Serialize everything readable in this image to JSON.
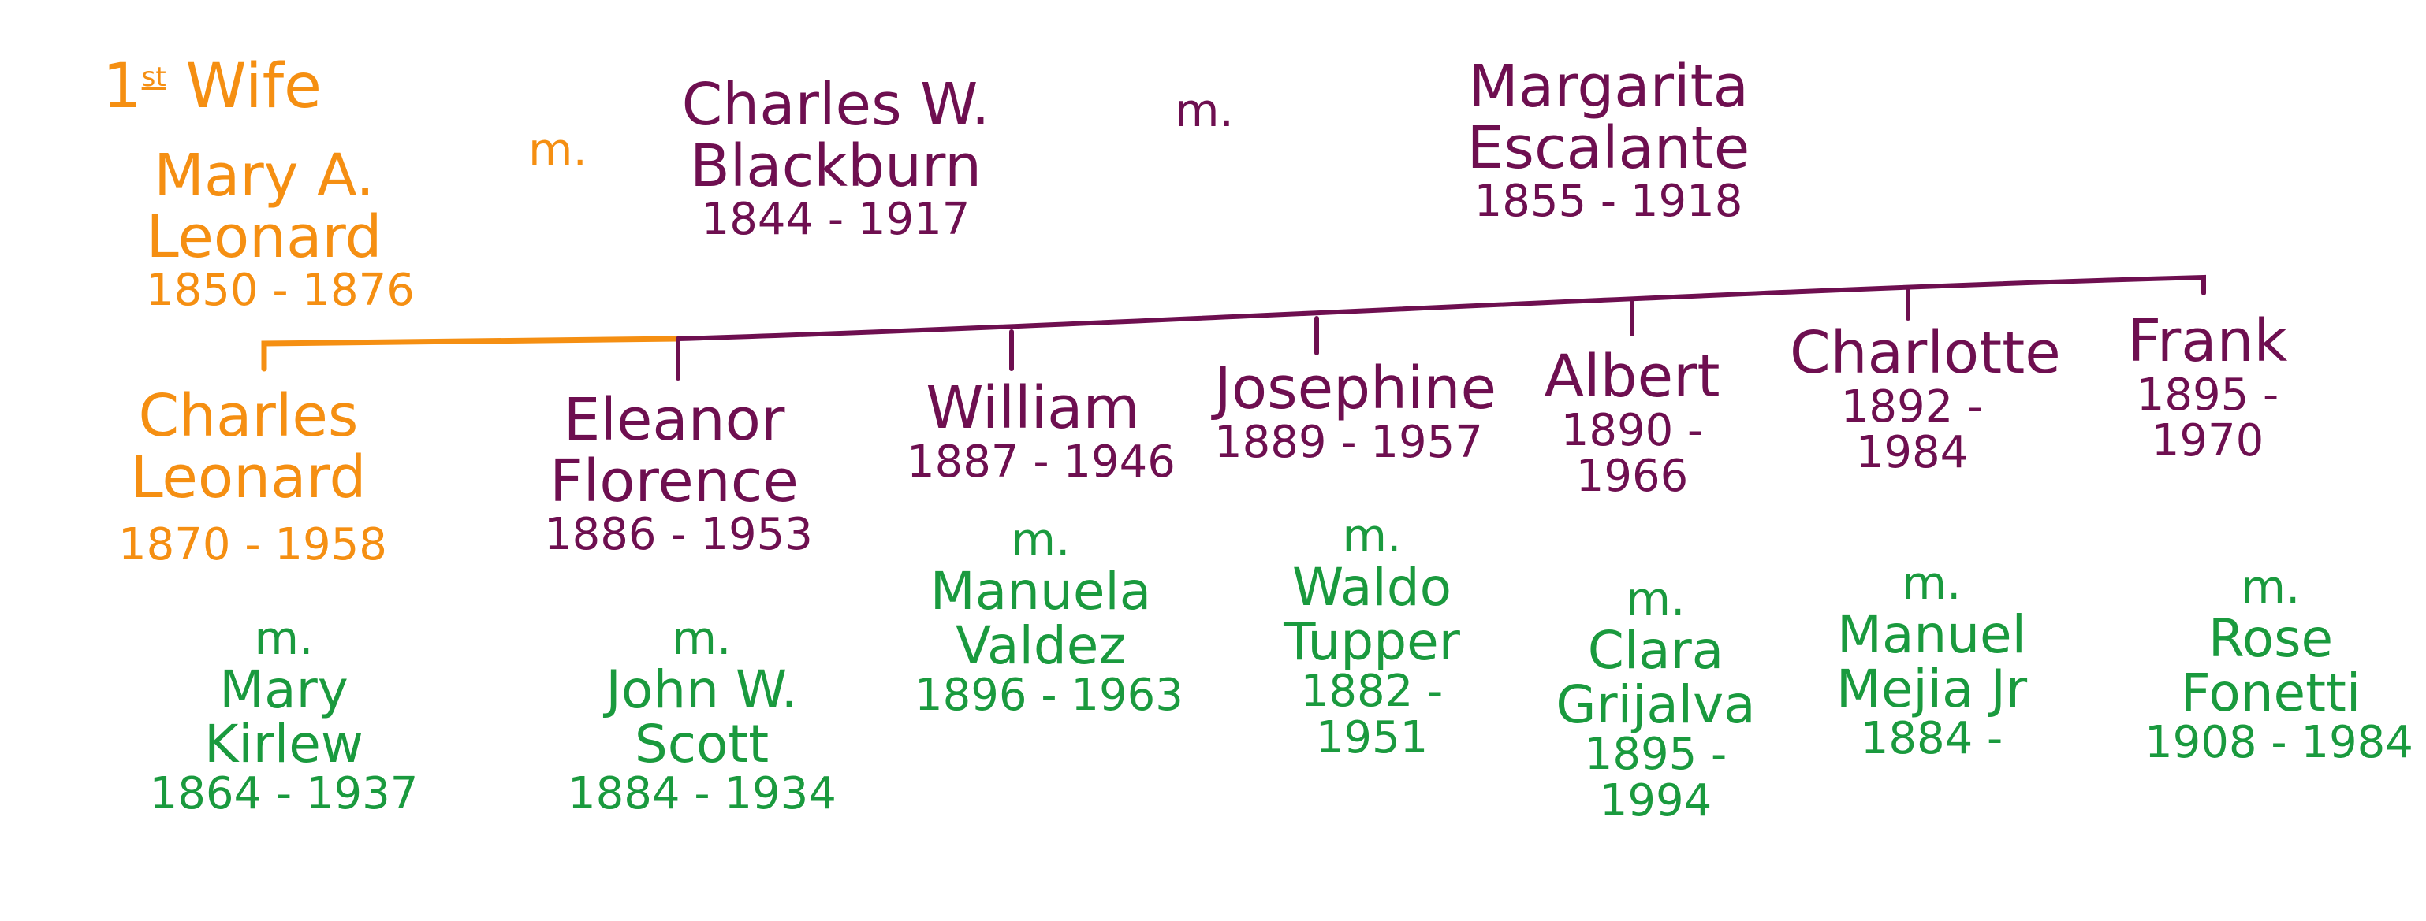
{
  "colors": {
    "first_wife": "#f58f12",
    "main_line": "#6e0f50",
    "spouses": "#1a9a3e"
  },
  "first_wife": {
    "label_ordinal": "1",
    "label_ordinal_suffix": "st",
    "label_word": "Wife",
    "name_line1": "Mary A.",
    "name_line2": "Leonard",
    "dates": "1850 - 1876",
    "marriage": "m."
  },
  "patriarch": {
    "name_line1": "Charles W.",
    "name_line2": "Blackburn",
    "dates": "1844 - 1917"
  },
  "second_marriage": "m.",
  "second_wife": {
    "name_line1": "Margarita",
    "name_line2": "Escalante",
    "dates": "1855 - 1918"
  },
  "children": [
    {
      "name_lines": [
        "Charles",
        "Leonard"
      ],
      "dates_lines": [
        "1870 - 1958"
      ],
      "marriage": "m.",
      "spouse_name_lines": [
        "Mary",
        "Kirlew"
      ],
      "spouse_dates_lines": [
        "1864 - 1937"
      ]
    },
    {
      "name_lines": [
        "Eleanor",
        "Florence"
      ],
      "dates_lines": [
        "1886 - 1953"
      ],
      "marriage": "m.",
      "spouse_name_lines": [
        "John W.",
        "Scott"
      ],
      "spouse_dates_lines": [
        "1884 - 1934"
      ]
    },
    {
      "name_lines": [
        "William"
      ],
      "dates_lines": [
        "1887 - 1946"
      ],
      "marriage": "m.",
      "spouse_name_lines": [
        "Manuela",
        "Valdez"
      ],
      "spouse_dates_lines": [
        "1896 - 1963"
      ]
    },
    {
      "name_lines": [
        "Josephine"
      ],
      "dates_lines": [
        "1889 - 1957"
      ],
      "marriage": "m.",
      "spouse_name_lines": [
        "Waldo",
        "Tupper"
      ],
      "spouse_dates_lines": [
        "1882 -",
        "1951"
      ]
    },
    {
      "name_lines": [
        "Albert"
      ],
      "dates_lines": [
        "1890 -",
        "1966"
      ],
      "marriage": "m.",
      "spouse_name_lines": [
        "Clara",
        "Grijalva"
      ],
      "spouse_dates_lines": [
        "1895 -",
        "1994"
      ]
    },
    {
      "name_lines": [
        "Charlotte"
      ],
      "dates_lines": [
        "1892 -",
        "1984"
      ],
      "marriage": "m.",
      "spouse_name_lines": [
        "Manuel",
        "Mejia Jr"
      ],
      "spouse_dates_lines": [
        "1884 -"
      ]
    },
    {
      "name_lines": [
        "Frank"
      ],
      "dates_lines": [
        "1895 -",
        "1970"
      ],
      "marriage": "m.",
      "spouse_name_lines": [
        "Rose",
        "Fonetti"
      ],
      "spouse_dates_lines": [
        "1908 - 1984"
      ]
    }
  ]
}
